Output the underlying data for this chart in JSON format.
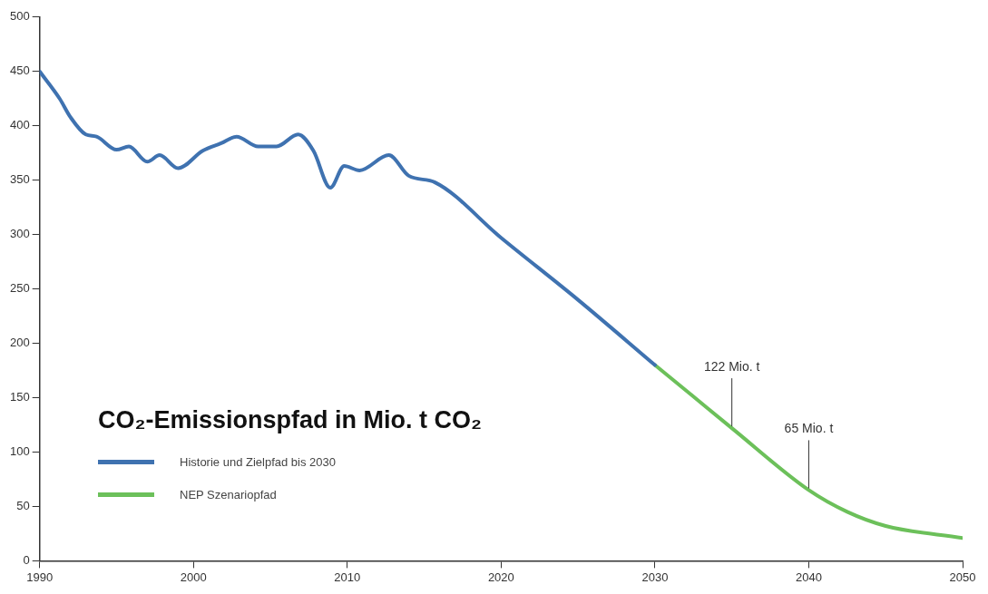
{
  "chart_data": {
    "type": "line",
    "title": "CO₂-Emissionspfad in Mio. t CO₂",
    "series": [
      {
        "name": "Historie und Zielpfad bis 2030",
        "color": "#3f72b0",
        "x": [
          1990,
          1991.3,
          1992,
          1993,
          1993.7,
          1995,
          1995.8,
          1997,
          1997.8,
          1999,
          2000.6,
          2001.8,
          2002.8,
          2004.2,
          2005.4,
          2006.8,
          2007.8,
          2008.9,
          2009.8,
          2010.8,
          2012.7,
          2014,
          2015.7,
          2020,
          2025,
          2030
        ],
        "values": [
          450,
          425,
          408,
          392,
          390,
          378,
          381,
          367,
          373,
          361,
          377,
          384,
          390,
          381,
          381,
          392,
          377,
          343,
          363,
          359,
          373,
          354,
          348,
          297,
          240,
          180
        ]
      },
      {
        "name": "NEP Szenariopfad",
        "color": "#6cc05a",
        "x": [
          2030,
          2032.5,
          2035,
          2040,
          2042.5,
          2045,
          2050
        ],
        "values": [
          180,
          151,
          122,
          65,
          45,
          32,
          21
        ]
      }
    ],
    "xlim": [
      1990,
      2050
    ],
    "xticks": [
      1990,
      2000,
      2010,
      2020,
      2030,
      2040,
      2050
    ],
    "ylim": [
      0,
      500
    ],
    "yticks": [
      0,
      50,
      100,
      150,
      200,
      250,
      300,
      350,
      400,
      450,
      500
    ],
    "grid": false,
    "legend": "bottom left",
    "marker": "none",
    "line_style": "solid",
    "annotations": [
      {
        "text": "122 Mio. t",
        "x": 2035,
        "y": 122
      },
      {
        "text": "65 Mio. t",
        "x": 2040,
        "y": 65
      }
    ]
  }
}
